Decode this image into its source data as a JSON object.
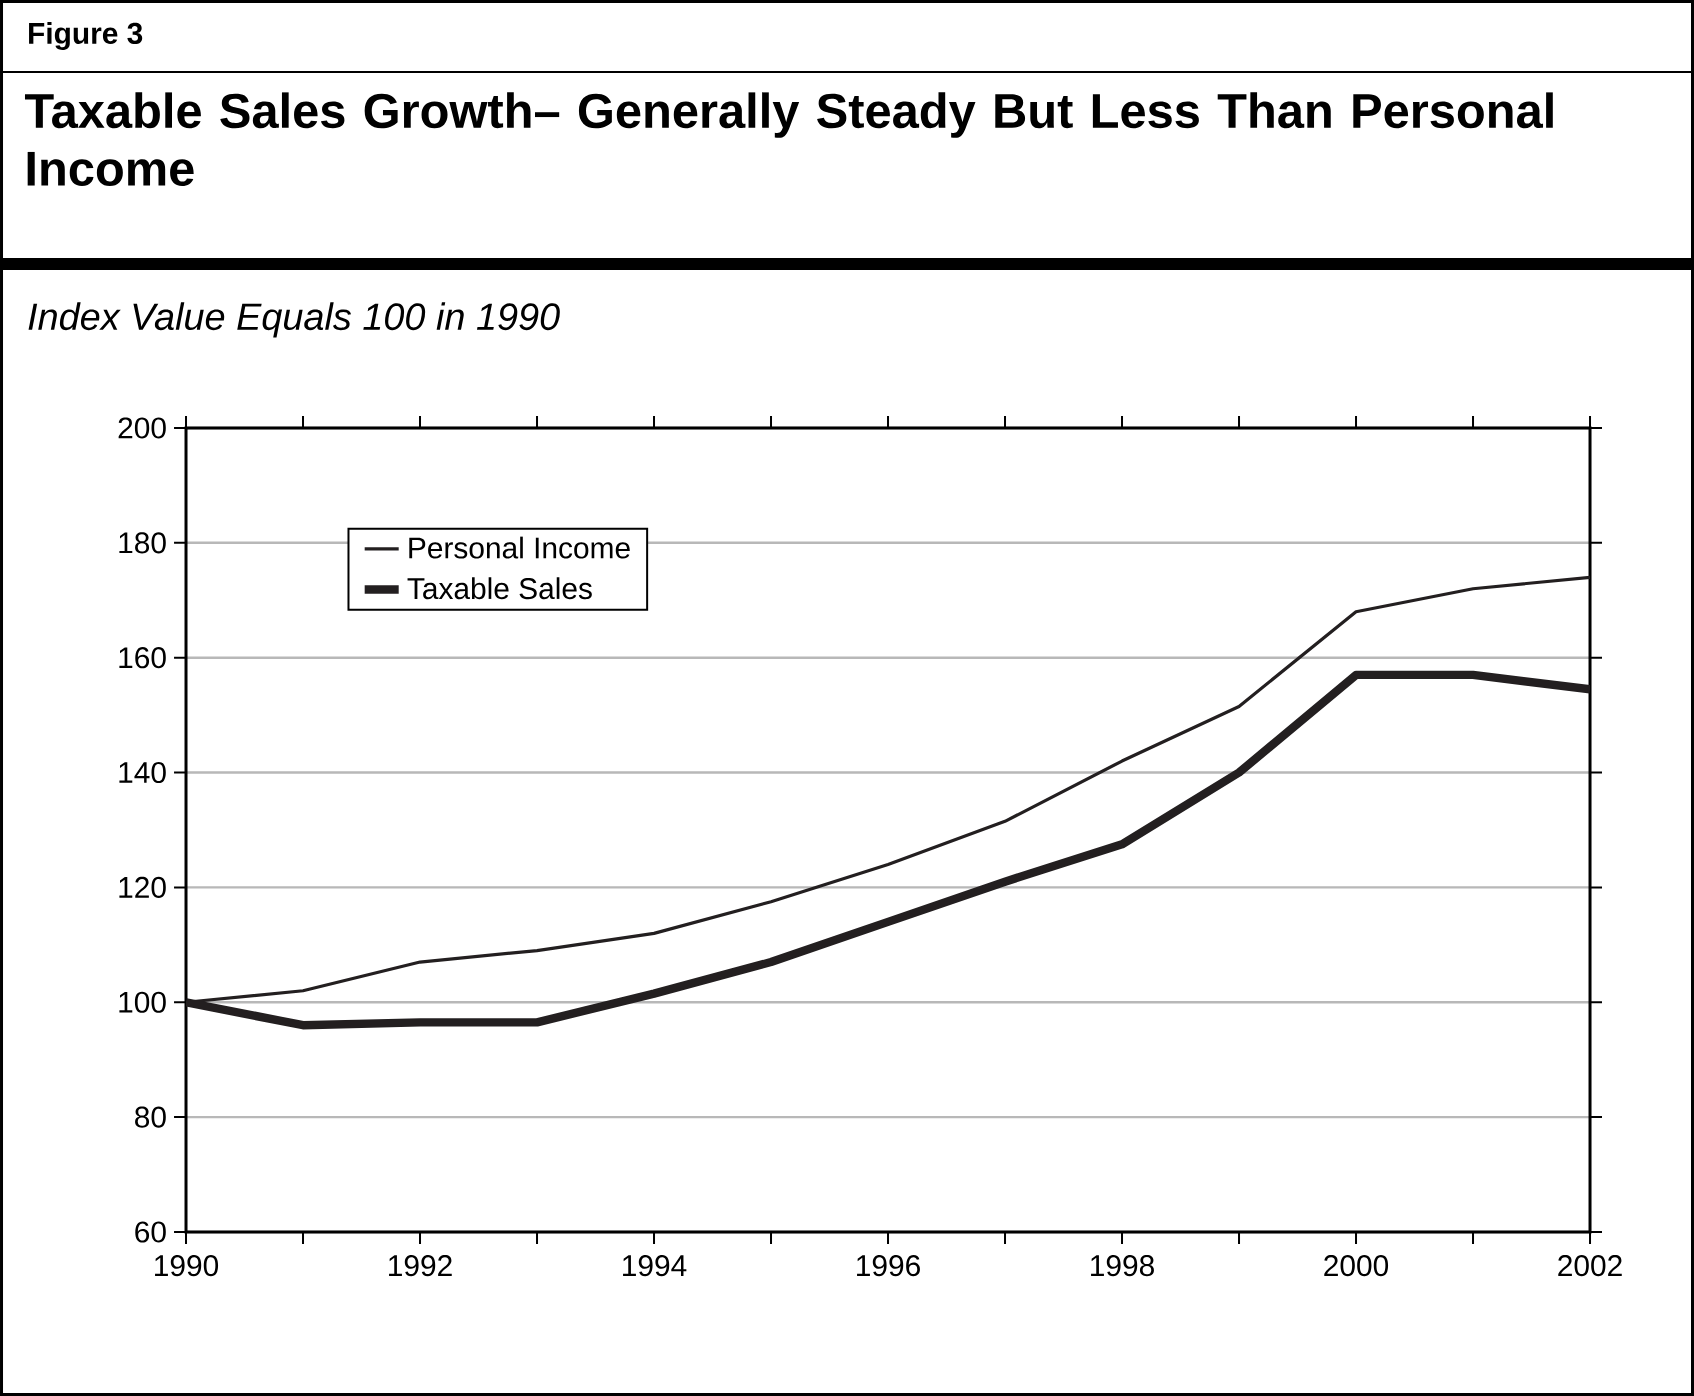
{
  "chart_data": {
    "type": "line",
    "title": "Taxable Sales Growth– Generally Steady But Less Than Personal Income",
    "subtitle": "Index Value Equals 100 in 1990",
    "annotations": [
      "Figure 3"
    ],
    "x": [
      1990,
      1991,
      1992,
      1993,
      1994,
      1995,
      1996,
      1997,
      1998,
      1999,
      2000,
      2001,
      2002
    ],
    "series": [
      {
        "name": "Personal Income",
        "color": "#231f20",
        "values": [
          100,
          102,
          107,
          109,
          112,
          117.5,
          124,
          131.5,
          142,
          151.5,
          168,
          172,
          174
        ]
      },
      {
        "name": "Taxable Sales",
        "color": "#231f20",
        "values": [
          100,
          96,
          96.5,
          96.5,
          101.5,
          107,
          114,
          121,
          127.5,
          140,
          157,
          157,
          154.5
        ]
      }
    ],
    "xlim": [
      1990,
      2002
    ],
    "xticks": [
      1990,
      {
        "value": 1991,
        "label": null
      },
      1992,
      {
        "value": 1993,
        "label": null
      },
      1994,
      {
        "value": 1995,
        "label": null
      },
      1996,
      {
        "value": 1997,
        "label": null
      },
      1998,
      {
        "value": 1999,
        "label": null
      },
      2000,
      {
        "value": 2001,
        "label": null
      },
      2002
    ],
    "ylim": [
      60,
      200
    ],
    "yticks": [
      60,
      80,
      100,
      120,
      140,
      160,
      180,
      200
    ],
    "grid": "y",
    "legend": "top left",
    "marker": "none",
    "line_style": "solid"
  }
}
